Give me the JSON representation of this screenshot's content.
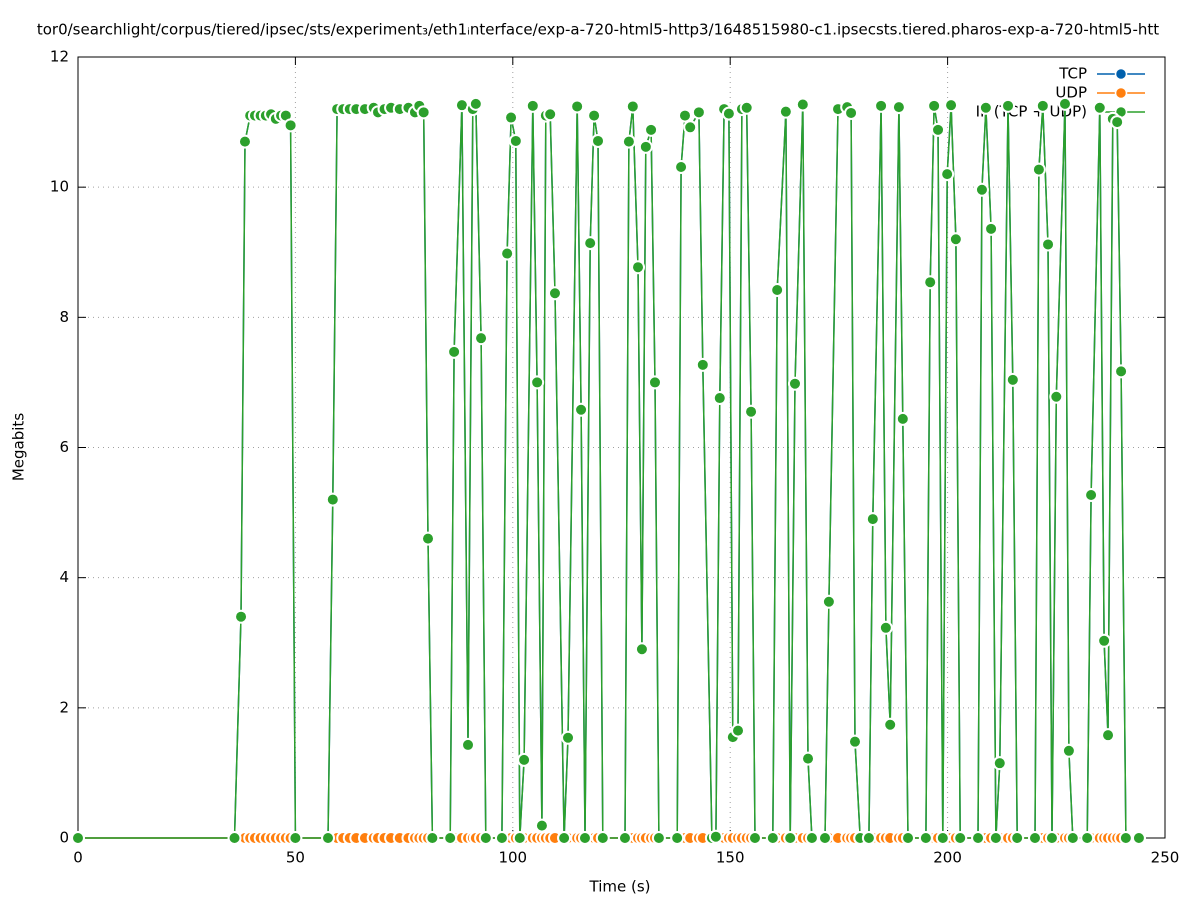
{
  "chart_data": {
    "type": "line",
    "title": "tor0/searchlight/corpus/tiered/ipsec/sts/experiment₃/eth1ᵢnterface/exp-a-720-html5-http3/1648515980-c1.ipsecsts.tiered.pharos-exp-a-720-html5-htt",
    "x_label": "Time (s)",
    "y_label": "Megabits",
    "xlim": [
      0,
      250
    ],
    "xticks": [
      0,
      50,
      100,
      150,
      200,
      250
    ],
    "ylim": [
      0,
      12
    ],
    "yticks": [
      0,
      2,
      4,
      6,
      8,
      10,
      12
    ],
    "grid": true,
    "legend": "top-right",
    "x": [
      0,
      36,
      37.5,
      38.4,
      39.6,
      40.7,
      42,
      43.2,
      44.4,
      45.5,
      46.7,
      47.8,
      48.9,
      50,
      57.5,
      58.6,
      59.6,
      61,
      62.5,
      64,
      66,
      68,
      69,
      70.5,
      72,
      74,
      76,
      77.5,
      78.5,
      79.5,
      80.5,
      81.5,
      85.6,
      86.5,
      88.3,
      89.7,
      90.8,
      91.5,
      92.7,
      93.8,
      97.5,
      98.7,
      99.6,
      100.7,
      101.6,
      102.6,
      104.6,
      105.6,
      106.7,
      107.6,
      108.6,
      109.7,
      111.8,
      112.7,
      114.8,
      115.7,
      116.6,
      117.8,
      118.7,
      119.6,
      120.7,
      125.8,
      126.7,
      127.6,
      128.8,
      129.7,
      130.6,
      131.8,
      132.7,
      133.6,
      137.8,
      138.7,
      139.6,
      140.8,
      142.8,
      143.7,
      145.8,
      146.7,
      147.6,
      148.6,
      149.7,
      150.6,
      151.8,
      152.7,
      153.8,
      154.8,
      155.7,
      159.8,
      160.8,
      162.8,
      163.8,
      164.9,
      166.7,
      167.9,
      168.8,
      171.8,
      172.7,
      174.8,
      176.9,
      177.8,
      178.7,
      179.9,
      181.9,
      182.8,
      184.7,
      185.8,
      186.8,
      188.8,
      189.7,
      190.9,
      195,
      196,
      196.9,
      197.8,
      198.9,
      199.9,
      200.8,
      201.9,
      202.9,
      207,
      207.9,
      208.8,
      210,
      211.1,
      212,
      213.9,
      215,
      216,
      220.1,
      221,
      221.9,
      223.1,
      224,
      225,
      227,
      227.9,
      228.8,
      232.1,
      233,
      235,
      236,
      236.9,
      238,
      239,
      239.9,
      241,
      244
    ],
    "series": [
      {
        "name": "TCP",
        "color": "#0060ad",
        "values": [
          0,
          0,
          3.4,
          10.7,
          11.1,
          11.1,
          11.1,
          11.1,
          11.12,
          11.05,
          11.1,
          11.1,
          10.95,
          0,
          0,
          5.2,
          11.2,
          11.2,
          11.2,
          11.2,
          11.2,
          11.22,
          11.15,
          11.2,
          11.22,
          11.2,
          11.22,
          11.15,
          11.25,
          11.15,
          4.6,
          0,
          0,
          7.47,
          11.26,
          1.43,
          11.2,
          11.28,
          7.68,
          0,
          0,
          8.98,
          11.07,
          10.71,
          0,
          1.2,
          11.25,
          7.0,
          0.19,
          11.1,
          11.12,
          8.37,
          0,
          1.54,
          11.24,
          6.58,
          0,
          9.14,
          11.1,
          10.71,
          0,
          0,
          10.7,
          11.24,
          8.77,
          2.9,
          10.62,
          10.88,
          7.0,
          0,
          0,
          10.31,
          11.1,
          10.92,
          11.15,
          7.27,
          0,
          0.02,
          6.76,
          11.2,
          11.13,
          1.55,
          1.65,
          11.2,
          11.22,
          6.55,
          0,
          0,
          8.42,
          11.16,
          0,
          6.98,
          11.27,
          1.22,
          0,
          0,
          3.63,
          11.2,
          11.23,
          11.14,
          1.48,
          0,
          0,
          4.9,
          11.25,
          3.23,
          1.74,
          11.23,
          6.44,
          0,
          0,
          8.54,
          11.25,
          10.88,
          0,
          10.2,
          11.26,
          9.2,
          0,
          0,
          9.96,
          11.22,
          9.36,
          0,
          1.15,
          11.25,
          7.04,
          0,
          0,
          10.27,
          11.25,
          9.12,
          0,
          6.78,
          11.28,
          1.34,
          0,
          0,
          5.27,
          11.22,
          3.03,
          1.58,
          11.05,
          11.0,
          7.17,
          0,
          0
        ]
      },
      {
        "name": "UDP",
        "color": "#ff7f0e",
        "values": [
          0,
          0,
          0,
          0,
          0,
          0,
          0,
          0,
          0,
          0,
          0,
          0,
          0,
          0,
          0,
          0,
          0,
          0,
          0,
          0,
          0,
          0,
          0,
          0,
          0,
          0,
          0,
          0,
          0,
          0,
          0,
          0,
          0,
          0,
          0,
          0,
          0,
          0,
          0,
          0,
          0,
          0,
          0,
          0,
          0,
          0,
          0,
          0,
          0,
          0,
          0,
          0,
          0,
          0,
          0,
          0,
          0,
          0,
          0,
          0,
          0,
          0,
          0,
          0,
          0,
          0,
          0,
          0,
          0,
          0,
          0,
          0,
          0,
          0,
          0,
          0,
          0,
          0,
          0,
          0,
          0,
          0,
          0,
          0,
          0,
          0,
          0,
          0,
          0,
          0,
          0,
          0,
          0,
          0,
          0,
          0,
          0,
          0,
          0,
          0,
          0,
          0,
          0,
          0,
          0,
          0,
          0,
          0,
          0,
          0,
          0,
          0,
          0,
          0,
          0,
          0,
          0,
          0,
          0,
          0,
          0,
          0,
          0,
          0,
          0,
          0,
          0,
          0,
          0,
          0,
          0,
          0,
          0,
          0,
          0,
          0,
          0,
          0,
          0,
          0,
          0,
          0,
          0,
          0,
          0,
          0,
          0
        ]
      },
      {
        "name": "IP (TCP + UDP)",
        "color": "#2ca02c",
        "values": [
          0,
          0,
          3.4,
          10.7,
          11.1,
          11.1,
          11.1,
          11.1,
          11.12,
          11.05,
          11.1,
          11.1,
          10.95,
          0,
          0,
          5.2,
          11.2,
          11.2,
          11.2,
          11.2,
          11.2,
          11.22,
          11.15,
          11.2,
          11.22,
          11.2,
          11.22,
          11.15,
          11.25,
          11.15,
          4.6,
          0,
          0,
          7.47,
          11.26,
          1.43,
          11.2,
          11.28,
          7.68,
          0,
          0,
          8.98,
          11.07,
          10.71,
          0,
          1.2,
          11.25,
          7.0,
          0.19,
          11.1,
          11.12,
          8.37,
          0,
          1.54,
          11.24,
          6.58,
          0,
          9.14,
          11.1,
          10.71,
          0,
          0,
          10.7,
          11.24,
          8.77,
          2.9,
          10.62,
          10.88,
          7.0,
          0,
          0,
          10.31,
          11.1,
          10.92,
          11.15,
          7.27,
          0,
          0.02,
          6.76,
          11.2,
          11.13,
          1.55,
          1.65,
          11.2,
          11.22,
          6.55,
          0,
          0,
          8.42,
          11.16,
          0,
          6.98,
          11.27,
          1.22,
          0,
          0,
          3.63,
          11.2,
          11.23,
          11.14,
          1.48,
          0,
          0,
          4.9,
          11.25,
          3.23,
          1.74,
          11.23,
          6.44,
          0,
          0,
          8.54,
          11.25,
          10.88,
          0,
          10.2,
          11.26,
          9.2,
          0,
          0,
          9.96,
          11.22,
          9.36,
          0,
          1.15,
          11.25,
          7.04,
          0,
          0,
          10.27,
          11.25,
          9.12,
          0,
          6.78,
          11.28,
          1.34,
          0,
          0,
          5.27,
          11.22,
          3.03,
          1.58,
          11.05,
          11.0,
          7.17,
          0,
          0
        ]
      }
    ]
  }
}
